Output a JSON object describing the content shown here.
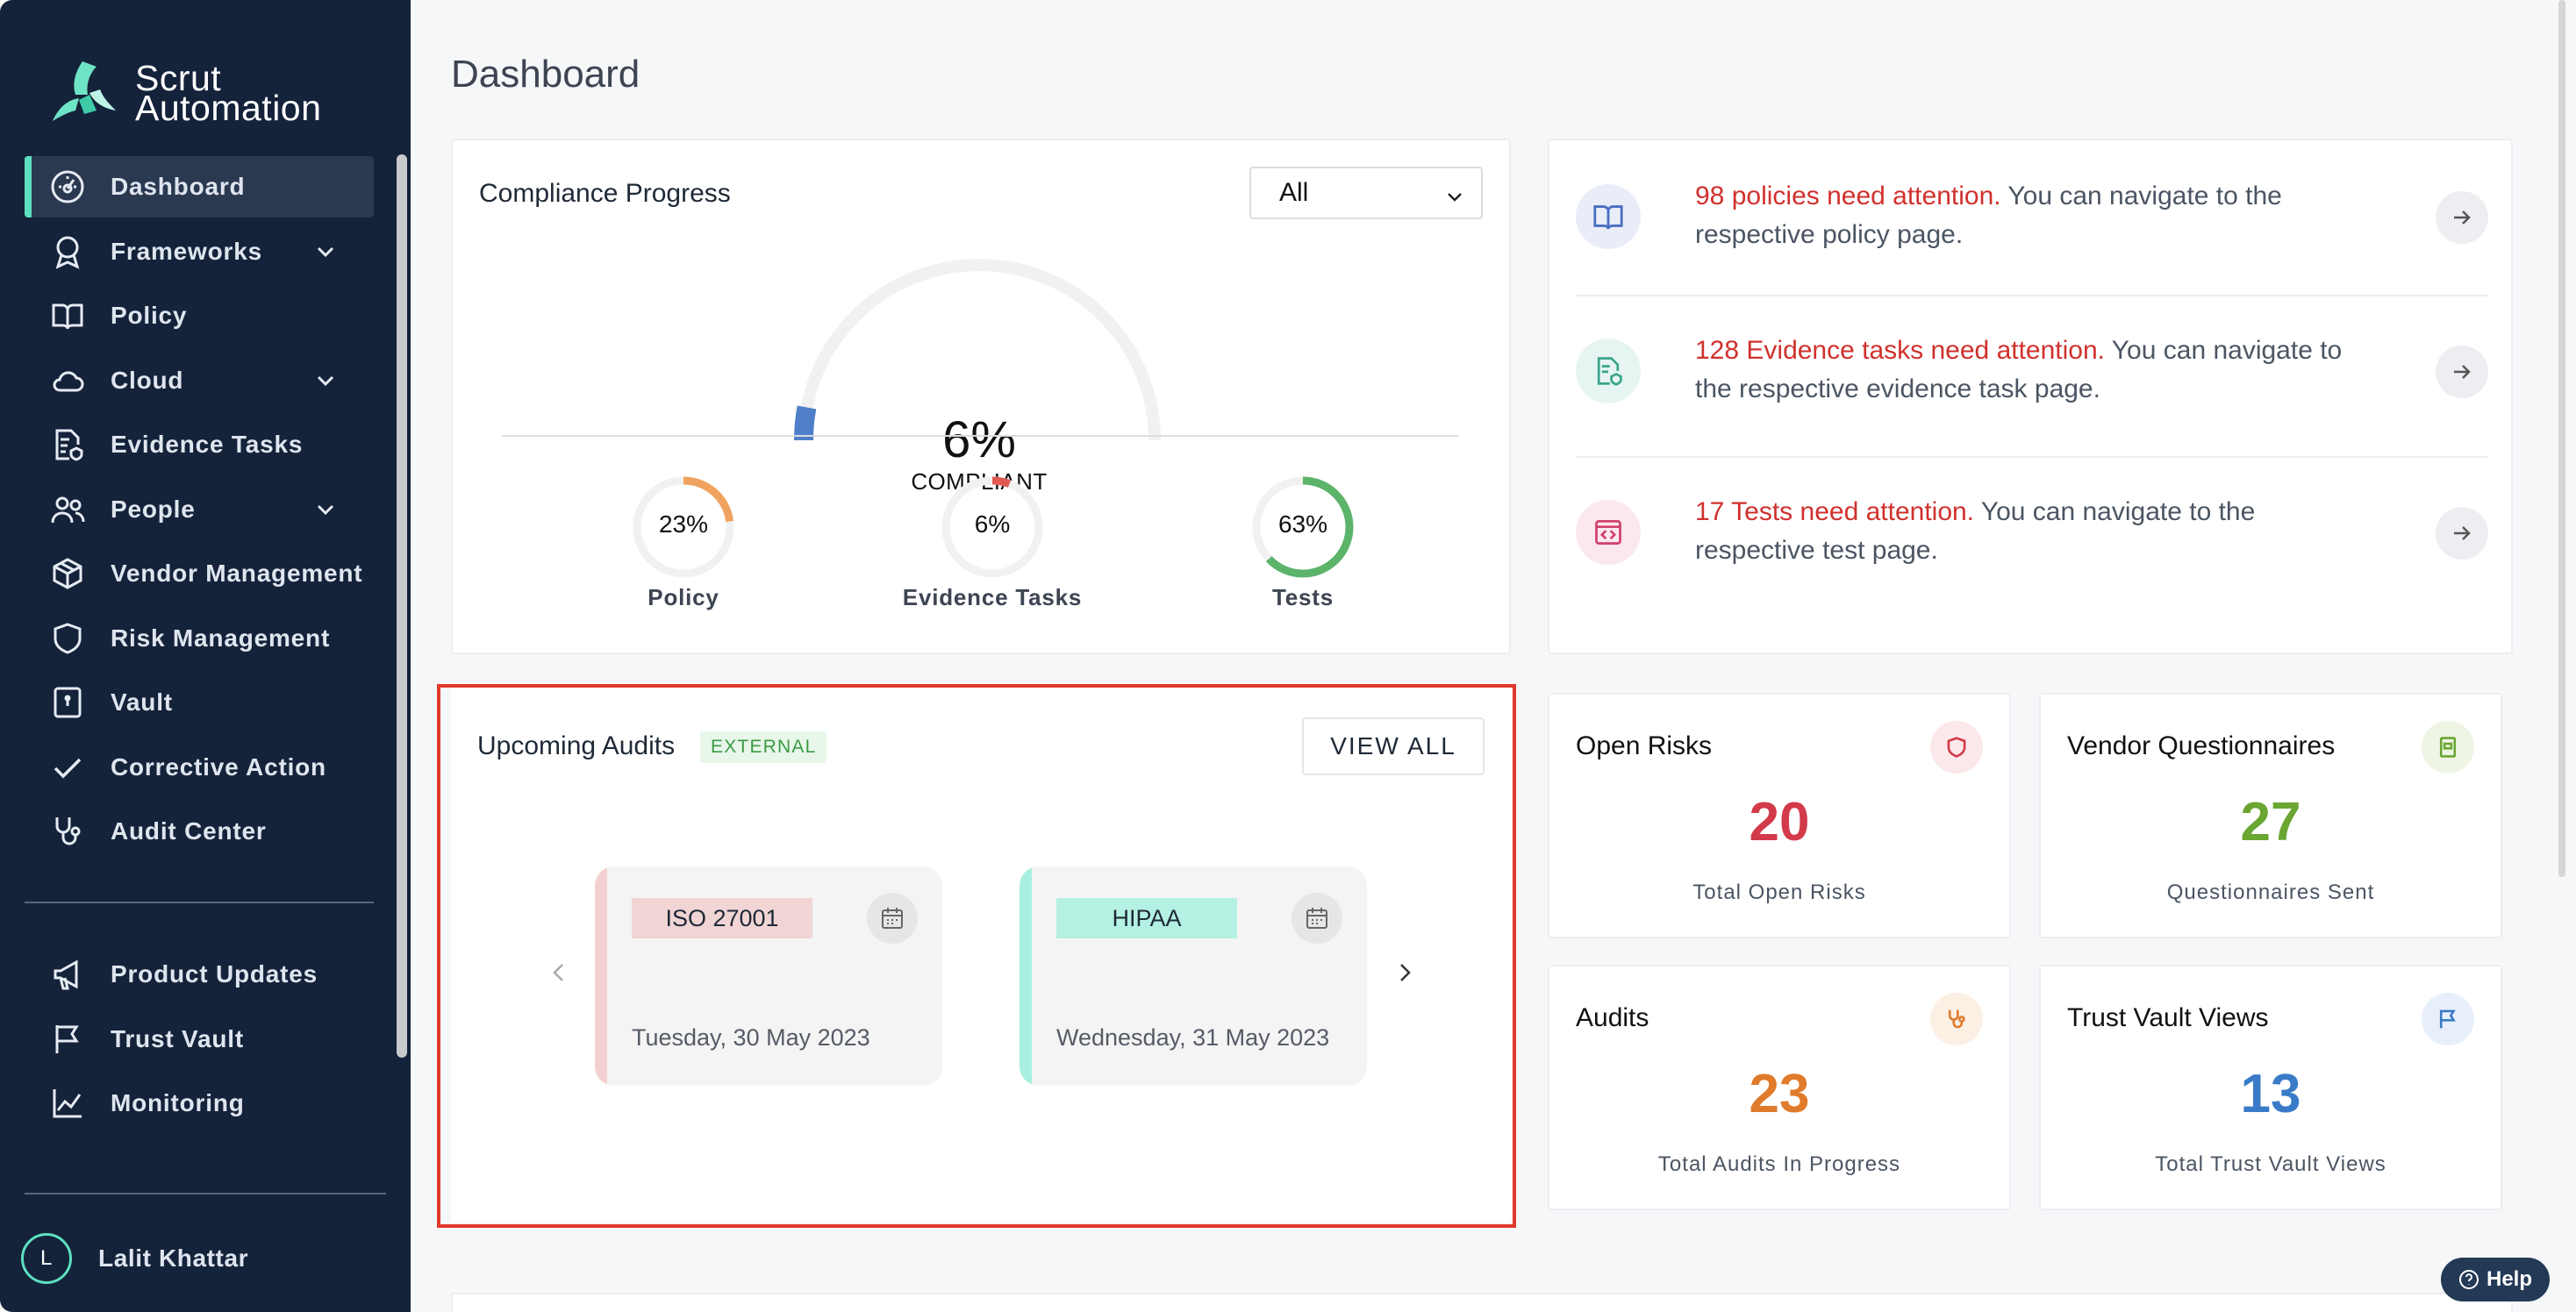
{
  "app": {
    "name": "Scrut Automation"
  },
  "sidebar": {
    "items": [
      {
        "label": "Dashboard",
        "icon": "dashboard-icon",
        "active": true
      },
      {
        "label": "Frameworks",
        "icon": "award-icon",
        "expandable": true
      },
      {
        "label": "Policy",
        "icon": "book-icon"
      },
      {
        "label": "Cloud",
        "icon": "cloud-icon",
        "expandable": true
      },
      {
        "label": "Evidence Tasks",
        "icon": "evidence-doc-icon"
      },
      {
        "label": "People",
        "icon": "people-icon",
        "expandable": true
      },
      {
        "label": "Vendor Management",
        "icon": "box-icon"
      },
      {
        "label": "Risk Management",
        "icon": "shield-icon"
      },
      {
        "label": "Vault",
        "icon": "vault-icon"
      },
      {
        "label": "Corrective Action",
        "icon": "check-icon"
      },
      {
        "label": "Audit Center",
        "icon": "stethoscope-icon"
      }
    ],
    "secondary": [
      {
        "label": "Product Updates",
        "icon": "megaphone-icon"
      },
      {
        "label": "Trust Vault",
        "icon": "flag-icon"
      },
      {
        "label": "Monitoring",
        "icon": "chart-line-icon"
      }
    ],
    "user": {
      "initial": "L",
      "name": "Lalit Khattar"
    }
  },
  "page": {
    "title": "Dashboard"
  },
  "compliance": {
    "title": "Compliance Progress",
    "filter_value": "All",
    "overall_percent": 6,
    "overall_text": "6%",
    "overall_label": "COMPLIANT",
    "rings": [
      {
        "label": "Policy",
        "text": "23%",
        "percent": 23,
        "color": "#f0a35e"
      },
      {
        "label": "Evidence Tasks",
        "text": "6%",
        "percent": 6,
        "color": "#e05a52"
      },
      {
        "label": "Tests",
        "text": "63%",
        "percent": 63,
        "color": "#5cb36a"
      }
    ]
  },
  "attention": [
    {
      "highlight": "98 policies need attention.",
      "rest": " You can navigate to the respective policy page.",
      "icon": "book-open-icon",
      "icon_bg": "#e8edf8",
      "icon_color": "#4a6fc0"
    },
    {
      "highlight": "128 Evidence tasks need attention.",
      "rest": " You can navigate to the respective evidence task page.",
      "icon": "evidence-doc-icon",
      "icon_bg": "#e6f5f1",
      "icon_color": "#3aa58a"
    },
    {
      "highlight": "17 Tests need attention.",
      "rest": " You can navigate to the respective test page.",
      "icon": "code-window-icon",
      "icon_bg": "#fbe7ee",
      "icon_color": "#d0406a"
    }
  ],
  "audits": {
    "title": "Upcoming Audits",
    "badge": "EXTERNAL",
    "view_all": "VIEW ALL",
    "items": [
      {
        "framework": "ISO 27001",
        "date": "Tuesday, 30 May 2023",
        "accent": "#f3cfcf",
        "tag_bg": "#f1d4d4"
      },
      {
        "framework": "HIPAA",
        "date": "Wednesday, 31 May 2023",
        "accent": "#a8efdf",
        "tag_bg": "#b4f1e2"
      }
    ]
  },
  "stats": [
    {
      "title": "Open Risks",
      "value": "20",
      "label": "Total Open Risks",
      "color": "#d33a4a",
      "icon": "shield-icon",
      "icon_bg": "#fbe8ea"
    },
    {
      "title": "Vendor Questionnaires",
      "value": "27",
      "label": "Questionnaires Sent",
      "color": "#6aa632",
      "icon": "clipboard-icon",
      "icon_bg": "#eef5e4"
    },
    {
      "title": "Audits",
      "value": "23",
      "label": "Total Audits In Progress",
      "color": "#e07b2c",
      "icon": "stethoscope-icon",
      "icon_bg": "#fcefe4"
    },
    {
      "title": "Trust Vault Views",
      "value": "13",
      "label": "Total Trust Vault Views",
      "color": "#3a7bc8",
      "icon": "flag-icon",
      "icon_bg": "#e7f0fa"
    }
  ],
  "help": {
    "label": "Help"
  }
}
